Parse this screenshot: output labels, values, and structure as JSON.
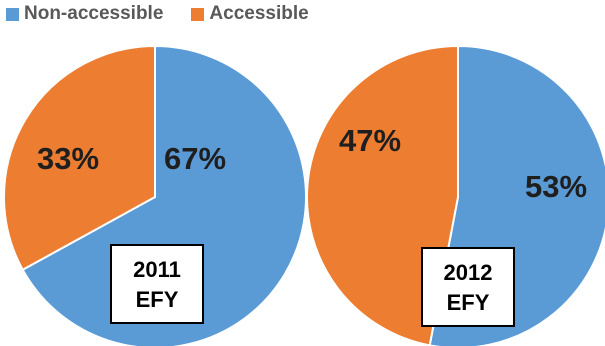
{
  "colors": {
    "non_accessible": "#5b9bd5",
    "accessible": "#ed7d31"
  },
  "legend": {
    "items": [
      {
        "label": "Non-accessible",
        "color": "#5b9bd5"
      },
      {
        "label": "Accessible",
        "color": "#ed7d31"
      }
    ],
    "position": "top-left"
  },
  "chart_data": [
    {
      "type": "pie",
      "year_label": "2011",
      "calendar_label": "EFY",
      "slices": [
        {
          "name": "Non-accessible",
          "value": 67,
          "label": "67%"
        },
        {
          "name": "Accessible",
          "value": 33,
          "label": "33%"
        }
      ]
    },
    {
      "type": "pie",
      "year_label": "2012",
      "calendar_label": "EFY",
      "slices": [
        {
          "name": "Non-accessible",
          "value": 53,
          "label": "53%"
        },
        {
          "name": "Accessible",
          "value": 47,
          "label": "47%"
        }
      ]
    }
  ]
}
